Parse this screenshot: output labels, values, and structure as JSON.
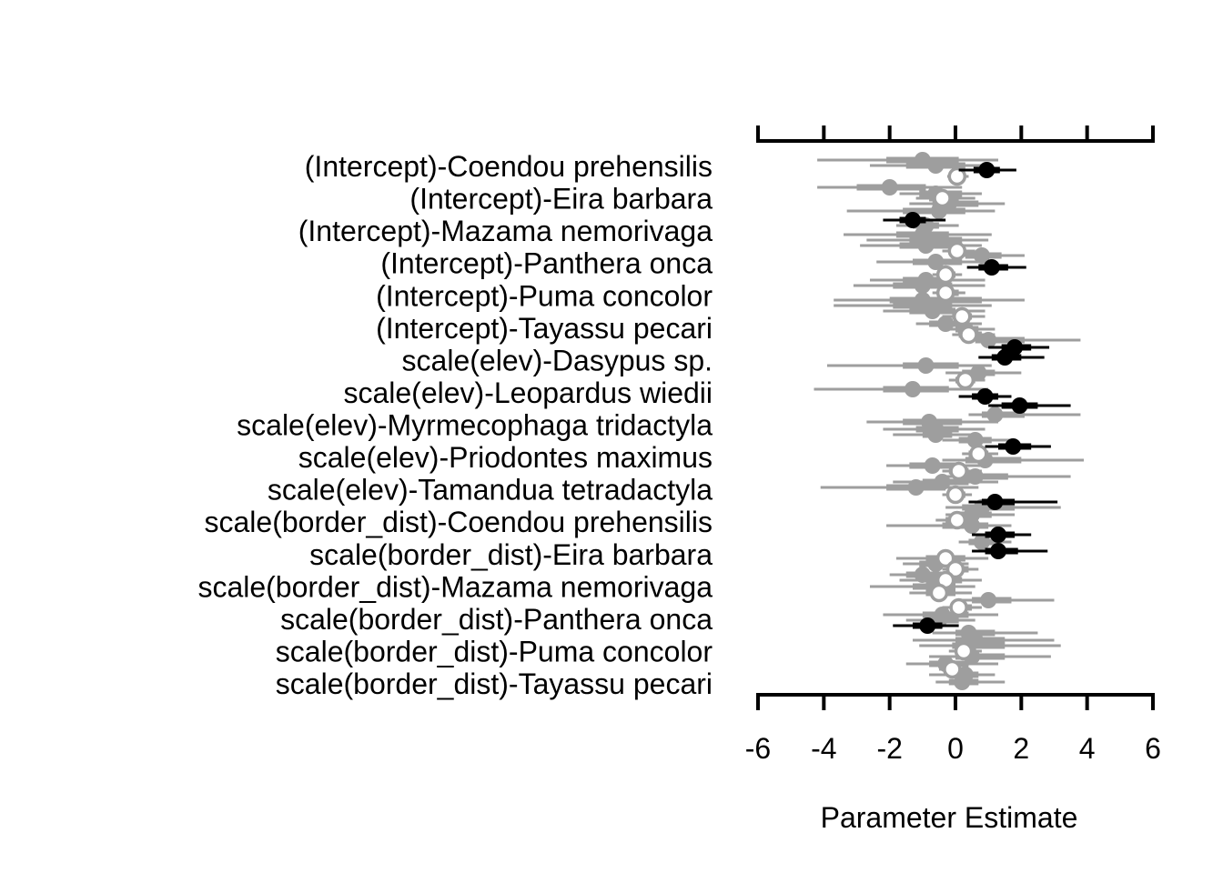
{
  "chart_data": {
    "type": "scatter",
    "xlabel": "Parameter Estimate",
    "xlim": [
      -6,
      6
    ],
    "xticks": [
      "-6",
      "-4",
      "-2",
      "0",
      "2",
      "4",
      "6"
    ],
    "tick_values": [
      -6,
      -4,
      -2,
      0,
      2,
      4,
      6
    ],
    "labels": [
      "(Intercept)-Coendou prehensilis",
      "(Intercept)-Eira barbara",
      "(Intercept)-Mazama nemorivaga",
      "(Intercept)-Panthera onca",
      "(Intercept)-Puma concolor",
      "(Intercept)-Tayassu pecari",
      "scale(elev)-Dasypus sp.",
      "scale(elev)-Leopardus wiedii",
      "scale(elev)-Myrmecophaga tridactyla",
      "scale(elev)-Priodontes maximus",
      "scale(elev)-Tamandua tetradactyla",
      "scale(border_dist)-Coendou prehensilis",
      "scale(border_dist)-Eira barbara",
      "scale(border_dist)-Mazama nemorivaga",
      "scale(border_dist)-Panthera onca",
      "scale(border_dist)-Puma concolor",
      "scale(border_dist)-Tayassu pecari"
    ],
    "colors": {
      "black": "#000000",
      "gray": "#9e9e9e"
    },
    "points": [
      {
        "y": 176,
        "est": -1.0,
        "lo": -4.2,
        "hi": 1.3,
        "ilo": -2.1,
        "ihi": 0.1,
        "kind": "gray"
      },
      {
        "y": 182,
        "est": -0.6,
        "lo": -2.6,
        "hi": 1.1,
        "ilo": -1.5,
        "ihi": 0.3,
        "kind": "gray"
      },
      {
        "y": 187,
        "est": 0.95,
        "lo": 0.1,
        "hi": 1.85,
        "ilo": 0.55,
        "ihi": 1.35,
        "kind": "black"
      },
      {
        "y": 194,
        "est": 0.05,
        "lo": -0.25,
        "hi": 0.4,
        "ilo": -0.1,
        "ihi": 0.2,
        "kind": "open"
      },
      {
        "y": 206,
        "est": -2.0,
        "lo": -4.2,
        "hi": 0.2,
        "ilo": -3.0,
        "ihi": -0.9,
        "kind": "gray"
      },
      {
        "y": 213,
        "est": -0.6,
        "lo": -1.7,
        "hi": 0.8,
        "ilo": -1.1,
        "ihi": 0.2,
        "kind": "gray"
      },
      {
        "y": 218,
        "est": -0.4,
        "lo": -1.2,
        "hi": 0.6,
        "ilo": -0.8,
        "ihi": 0.1,
        "kind": "open"
      },
      {
        "y": 224,
        "est": -0.2,
        "lo": -1.4,
        "hi": 1.5,
        "ilo": -0.7,
        "ihi": 0.7,
        "kind": "gray"
      },
      {
        "y": 232,
        "est": -0.5,
        "lo": -3.3,
        "hi": 1.2,
        "ilo": -1.6,
        "ihi": 0.3,
        "kind": "gray"
      },
      {
        "y": 242,
        "est": -1.3,
        "lo": -2.2,
        "hi": -0.3,
        "ilo": -1.7,
        "ihi": -0.9,
        "kind": "black"
      },
      {
        "y": 248,
        "est": -0.9,
        "lo": -1.8,
        "hi": 0.1,
        "ilo": -1.3,
        "ihi": -0.5,
        "kind": "gray"
      },
      {
        "y": 258,
        "est": -1.0,
        "lo": -3.4,
        "hi": 1.1,
        "ilo": -1.8,
        "ihi": -0.2,
        "kind": "gray"
      },
      {
        "y": 264,
        "est": -0.6,
        "lo": -2.7,
        "hi": 1.0,
        "ilo": -1.4,
        "ihi": 0.2,
        "kind": "gray"
      },
      {
        "y": 270,
        "est": -0.9,
        "lo": -2.9,
        "hi": 0.8,
        "ilo": -1.7,
        "ihi": -0.1,
        "kind": "gray"
      },
      {
        "y": 276,
        "est": 0.05,
        "lo": -0.4,
        "hi": 0.6,
        "ilo": -0.2,
        "ihi": 0.3,
        "kind": "open"
      },
      {
        "y": 281,
        "est": 0.8,
        "lo": -0.1,
        "hi": 2.1,
        "ilo": 0.3,
        "ihi": 1.4,
        "kind": "gray"
      },
      {
        "y": 288,
        "est": -0.6,
        "lo": -2.4,
        "hi": 1.2,
        "ilo": -1.3,
        "ihi": 0.2,
        "kind": "gray"
      },
      {
        "y": 294,
        "est": 1.1,
        "lo": 0.35,
        "hi": 2.15,
        "ilo": 0.7,
        "ihi": 1.6,
        "kind": "black"
      },
      {
        "y": 302,
        "est": -0.3,
        "lo": -0.7,
        "hi": 0.2,
        "ilo": -0.5,
        "ihi": 0.0,
        "kind": "open"
      },
      {
        "y": 308,
        "est": -0.9,
        "lo": -2.6,
        "hi": 0.9,
        "ilo": -1.6,
        "ihi": -0.2,
        "kind": "gray"
      },
      {
        "y": 314,
        "est": -1.0,
        "lo": -3.1,
        "hi": 0.9,
        "ilo": -1.9,
        "ihi": -0.1,
        "kind": "gray"
      },
      {
        "y": 322,
        "est": -0.3,
        "lo": -0.7,
        "hi": 0.3,
        "ilo": -0.5,
        "ihi": 0.1,
        "kind": "open"
      },
      {
        "y": 330,
        "est": -1.0,
        "lo": -3.7,
        "hi": 2.1,
        "ilo": -2.0,
        "ihi": 0.8,
        "kind": "gray"
      },
      {
        "y": 336,
        "est": -1.0,
        "lo": -3.7,
        "hi": 1.1,
        "ilo": -1.9,
        "ihi": -0.1,
        "kind": "gray"
      },
      {
        "y": 342,
        "est": -0.7,
        "lo": -2.2,
        "hi": 0.9,
        "ilo": -1.4,
        "ihi": 0.0,
        "kind": "gray"
      },
      {
        "y": 348,
        "est": 0.2,
        "lo": -0.4,
        "hi": 0.9,
        "ilo": -0.1,
        "ihi": 0.5,
        "kind": "open"
      },
      {
        "y": 356,
        "est": -0.3,
        "lo": -1.2,
        "hi": 0.8,
        "ilo": -0.8,
        "ihi": 0.2,
        "kind": "gray"
      },
      {
        "y": 362,
        "est": 0.3,
        "lo": -0.3,
        "hi": 1.2,
        "ilo": 0.0,
        "ihi": 0.7,
        "kind": "gray"
      },
      {
        "y": 368,
        "est": 0.4,
        "lo": -0.1,
        "hi": 1.2,
        "ilo": 0.1,
        "ihi": 0.8,
        "kind": "open"
      },
      {
        "y": 374,
        "est": 1.0,
        "lo": 0.2,
        "hi": 3.8,
        "ilo": 0.6,
        "ihi": 2.1,
        "kind": "gray"
      },
      {
        "y": 382,
        "est": 1.8,
        "lo": 1.0,
        "hi": 2.85,
        "ilo": 1.4,
        "ihi": 2.3,
        "kind": "black"
      },
      {
        "y": 393,
        "est": 1.5,
        "lo": 0.7,
        "hi": 2.7,
        "ilo": 1.1,
        "ihi": 2.0,
        "kind": "black"
      },
      {
        "y": 402,
        "est": -0.9,
        "lo": -3.9,
        "hi": 1.1,
        "ilo": -1.6,
        "ihi": 0.1,
        "kind": "gray"
      },
      {
        "y": 410,
        "est": 0.7,
        "lo": -0.3,
        "hi": 2.0,
        "ilo": 0.2,
        "ihi": 1.2,
        "kind": "gray"
      },
      {
        "y": 418,
        "est": 0.3,
        "lo": -0.2,
        "hi": 0.9,
        "ilo": 0.0,
        "ihi": 0.6,
        "kind": "open"
      },
      {
        "y": 428,
        "est": -1.3,
        "lo": -4.3,
        "hi": 1.0,
        "ilo": -2.2,
        "ihi": -0.2,
        "kind": "gray"
      },
      {
        "y": 436,
        "est": 0.9,
        "lo": 0.1,
        "hi": 1.7,
        "ilo": 0.5,
        "ihi": 1.3,
        "kind": "black"
      },
      {
        "y": 446,
        "est": 1.95,
        "lo": 1.0,
        "hi": 3.5,
        "ilo": 1.4,
        "ihi": 2.5,
        "kind": "black"
      },
      {
        "y": 456,
        "est": 1.2,
        "lo": 0.4,
        "hi": 3.8,
        "ilo": 0.8,
        "ihi": 2.1,
        "kind": "gray"
      },
      {
        "y": 464,
        "est": -0.8,
        "lo": -2.7,
        "hi": 1.3,
        "ilo": -1.6,
        "ihi": 0.2,
        "kind": "gray"
      },
      {
        "y": 472,
        "est": -0.6,
        "lo": -2.2,
        "hi": 0.9,
        "ilo": -1.2,
        "ihi": 0.1,
        "kind": "gray"
      },
      {
        "y": 478,
        "est": -0.6,
        "lo": -1.9,
        "hi": 0.5,
        "ilo": -1.0,
        "ihi": -0.1,
        "kind": "gray"
      },
      {
        "y": 484,
        "est": 0.6,
        "lo": -0.4,
        "hi": 1.8,
        "ilo": 0.1,
        "ihi": 1.1,
        "kind": "gray"
      },
      {
        "y": 491,
        "est": 1.75,
        "lo": 0.9,
        "hi": 2.9,
        "ilo": 1.3,
        "ihi": 2.3,
        "kind": "black"
      },
      {
        "y": 499,
        "est": 0.7,
        "lo": 0.2,
        "hi": 1.3,
        "ilo": 0.4,
        "ihi": 1.0,
        "kind": "open"
      },
      {
        "y": 506,
        "est": 0.9,
        "lo": -0.4,
        "hi": 3.9,
        "ilo": 0.3,
        "ihi": 2.0,
        "kind": "gray"
      },
      {
        "y": 512,
        "est": -0.7,
        "lo": -2.1,
        "hi": 0.9,
        "ilo": -1.4,
        "ihi": 0.0,
        "kind": "gray"
      },
      {
        "y": 518,
        "est": 0.1,
        "lo": -0.4,
        "hi": 0.8,
        "ilo": -0.2,
        "ihi": 0.4,
        "kind": "open"
      },
      {
        "y": 524,
        "est": 0.6,
        "lo": -0.5,
        "hi": 3.5,
        "ilo": 0.1,
        "ihi": 1.6,
        "kind": "gray"
      },
      {
        "y": 530,
        "est": -0.4,
        "lo": -1.9,
        "hi": 1.3,
        "ilo": -1.0,
        "ihi": 0.4,
        "kind": "gray"
      },
      {
        "y": 536,
        "est": -1.2,
        "lo": -4.1,
        "hi": 0.7,
        "ilo": -2.1,
        "ihi": -0.3,
        "kind": "gray"
      },
      {
        "y": 544,
        "est": 0.0,
        "lo": -0.4,
        "hi": 0.5,
        "ilo": -0.2,
        "ihi": 0.3,
        "kind": "open"
      },
      {
        "y": 552,
        "est": 1.2,
        "lo": 0.4,
        "hi": 3.1,
        "ilo": 0.8,
        "ihi": 1.8,
        "kind": "black"
      },
      {
        "y": 558,
        "est": 0.8,
        "lo": -0.3,
        "hi": 3.2,
        "ilo": 0.2,
        "ihi": 1.8,
        "kind": "gray"
      },
      {
        "y": 566,
        "est": 0.5,
        "lo": -0.3,
        "hi": 1.8,
        "ilo": 0.1,
        "ihi": 1.1,
        "kind": "gray"
      },
      {
        "y": 572,
        "est": 0.05,
        "lo": -0.6,
        "hi": 0.6,
        "ilo": -0.3,
        "ihi": 0.3,
        "kind": "open"
      },
      {
        "y": 578,
        "est": 0.5,
        "lo": -2.1,
        "hi": 1.7,
        "ilo": -0.4,
        "ihi": 1.0,
        "kind": "gray"
      },
      {
        "y": 588,
        "est": 1.3,
        "lo": 0.5,
        "hi": 2.3,
        "ilo": 0.9,
        "ihi": 1.8,
        "kind": "black"
      },
      {
        "y": 596,
        "est": 0.8,
        "lo": 0.1,
        "hi": 1.7,
        "ilo": 0.4,
        "ihi": 1.2,
        "kind": "gray"
      },
      {
        "y": 606,
        "est": 1.3,
        "lo": 0.5,
        "hi": 2.8,
        "ilo": 0.9,
        "ihi": 1.9,
        "kind": "black"
      },
      {
        "y": 614,
        "est": -0.3,
        "lo": -1.8,
        "hi": 1.0,
        "ilo": -0.9,
        "ihi": 0.3,
        "kind": "open"
      },
      {
        "y": 620,
        "est": -0.6,
        "lo": -1.6,
        "hi": 0.4,
        "ilo": -1.1,
        "ihi": -0.1,
        "kind": "gray"
      },
      {
        "y": 626,
        "est": 0.0,
        "lo": -0.4,
        "hi": 0.7,
        "ilo": -0.2,
        "ihi": 0.4,
        "kind": "open"
      },
      {
        "y": 632,
        "est": -1.0,
        "lo": -2.0,
        "hi": 0.2,
        "ilo": -1.5,
        "ihi": -0.4,
        "kind": "gray"
      },
      {
        "y": 638,
        "est": -0.3,
        "lo": -1.7,
        "hi": 0.8,
        "ilo": -0.9,
        "ihi": 0.2,
        "kind": "open"
      },
      {
        "y": 645,
        "est": -0.6,
        "lo": -2.6,
        "hi": 0.6,
        "ilo": -1.3,
        "ihi": 0.0,
        "kind": "gray"
      },
      {
        "y": 652,
        "est": -0.5,
        "lo": -1.4,
        "hi": 0.5,
        "ilo": -0.9,
        "ihi": 0.0,
        "kind": "open"
      },
      {
        "y": 660,
        "est": 1.0,
        "lo": 0.0,
        "hi": 3.0,
        "ilo": 0.5,
        "ihi": 1.7,
        "kind": "gray"
      },
      {
        "y": 668,
        "est": 0.1,
        "lo": -0.4,
        "hi": 0.8,
        "ilo": -0.1,
        "ihi": 0.5,
        "kind": "open"
      },
      {
        "y": 676,
        "est": -0.4,
        "lo": -2.2,
        "hi": 1.3,
        "ilo": -1.0,
        "ihi": 0.4,
        "kind": "gray"
      },
      {
        "y": 682,
        "est": -0.5,
        "lo": -1.5,
        "hi": 0.6,
        "ilo": -0.9,
        "ihi": 0.1,
        "kind": "gray"
      },
      {
        "y": 688,
        "est": -0.85,
        "lo": -1.9,
        "hi": 0.1,
        "ilo": -1.3,
        "ihi": -0.4,
        "kind": "black"
      },
      {
        "y": 696,
        "est": 0.4,
        "lo": -0.7,
        "hi": 2.5,
        "ilo": 0.0,
        "ihi": 1.2,
        "kind": "gray"
      },
      {
        "y": 704,
        "est": 0.6,
        "lo": -1.3,
        "hi": 3.0,
        "ilo": 0.0,
        "ihi": 1.5,
        "kind": "gray"
      },
      {
        "y": 710,
        "est": 0.4,
        "lo": -1.1,
        "hi": 3.2,
        "ilo": -0.1,
        "ihi": 1.5,
        "kind": "gray"
      },
      {
        "y": 716,
        "est": 0.25,
        "lo": -0.2,
        "hi": 0.8,
        "ilo": 0.0,
        "ihi": 0.5,
        "kind": "open"
      },
      {
        "y": 722,
        "est": 0.5,
        "lo": -0.8,
        "hi": 2.9,
        "ilo": 0.0,
        "ihi": 1.5,
        "kind": "gray"
      },
      {
        "y": 730,
        "est": -0.3,
        "lo": -1.5,
        "hi": 1.3,
        "ilo": -0.8,
        "ihi": 0.4,
        "kind": "gray"
      },
      {
        "y": 736,
        "est": -0.1,
        "lo": -0.5,
        "hi": 0.3,
        "ilo": -0.3,
        "ihi": 0.1,
        "kind": "open"
      },
      {
        "y": 742,
        "est": 0.3,
        "lo": -0.8,
        "hi": 1.2,
        "ilo": -0.2,
        "ihi": 0.7,
        "kind": "gray"
      },
      {
        "y": 750,
        "est": 0.2,
        "lo": -0.6,
        "hi": 1.5,
        "ilo": -0.2,
        "ihi": 0.7,
        "kind": "gray"
      }
    ]
  }
}
